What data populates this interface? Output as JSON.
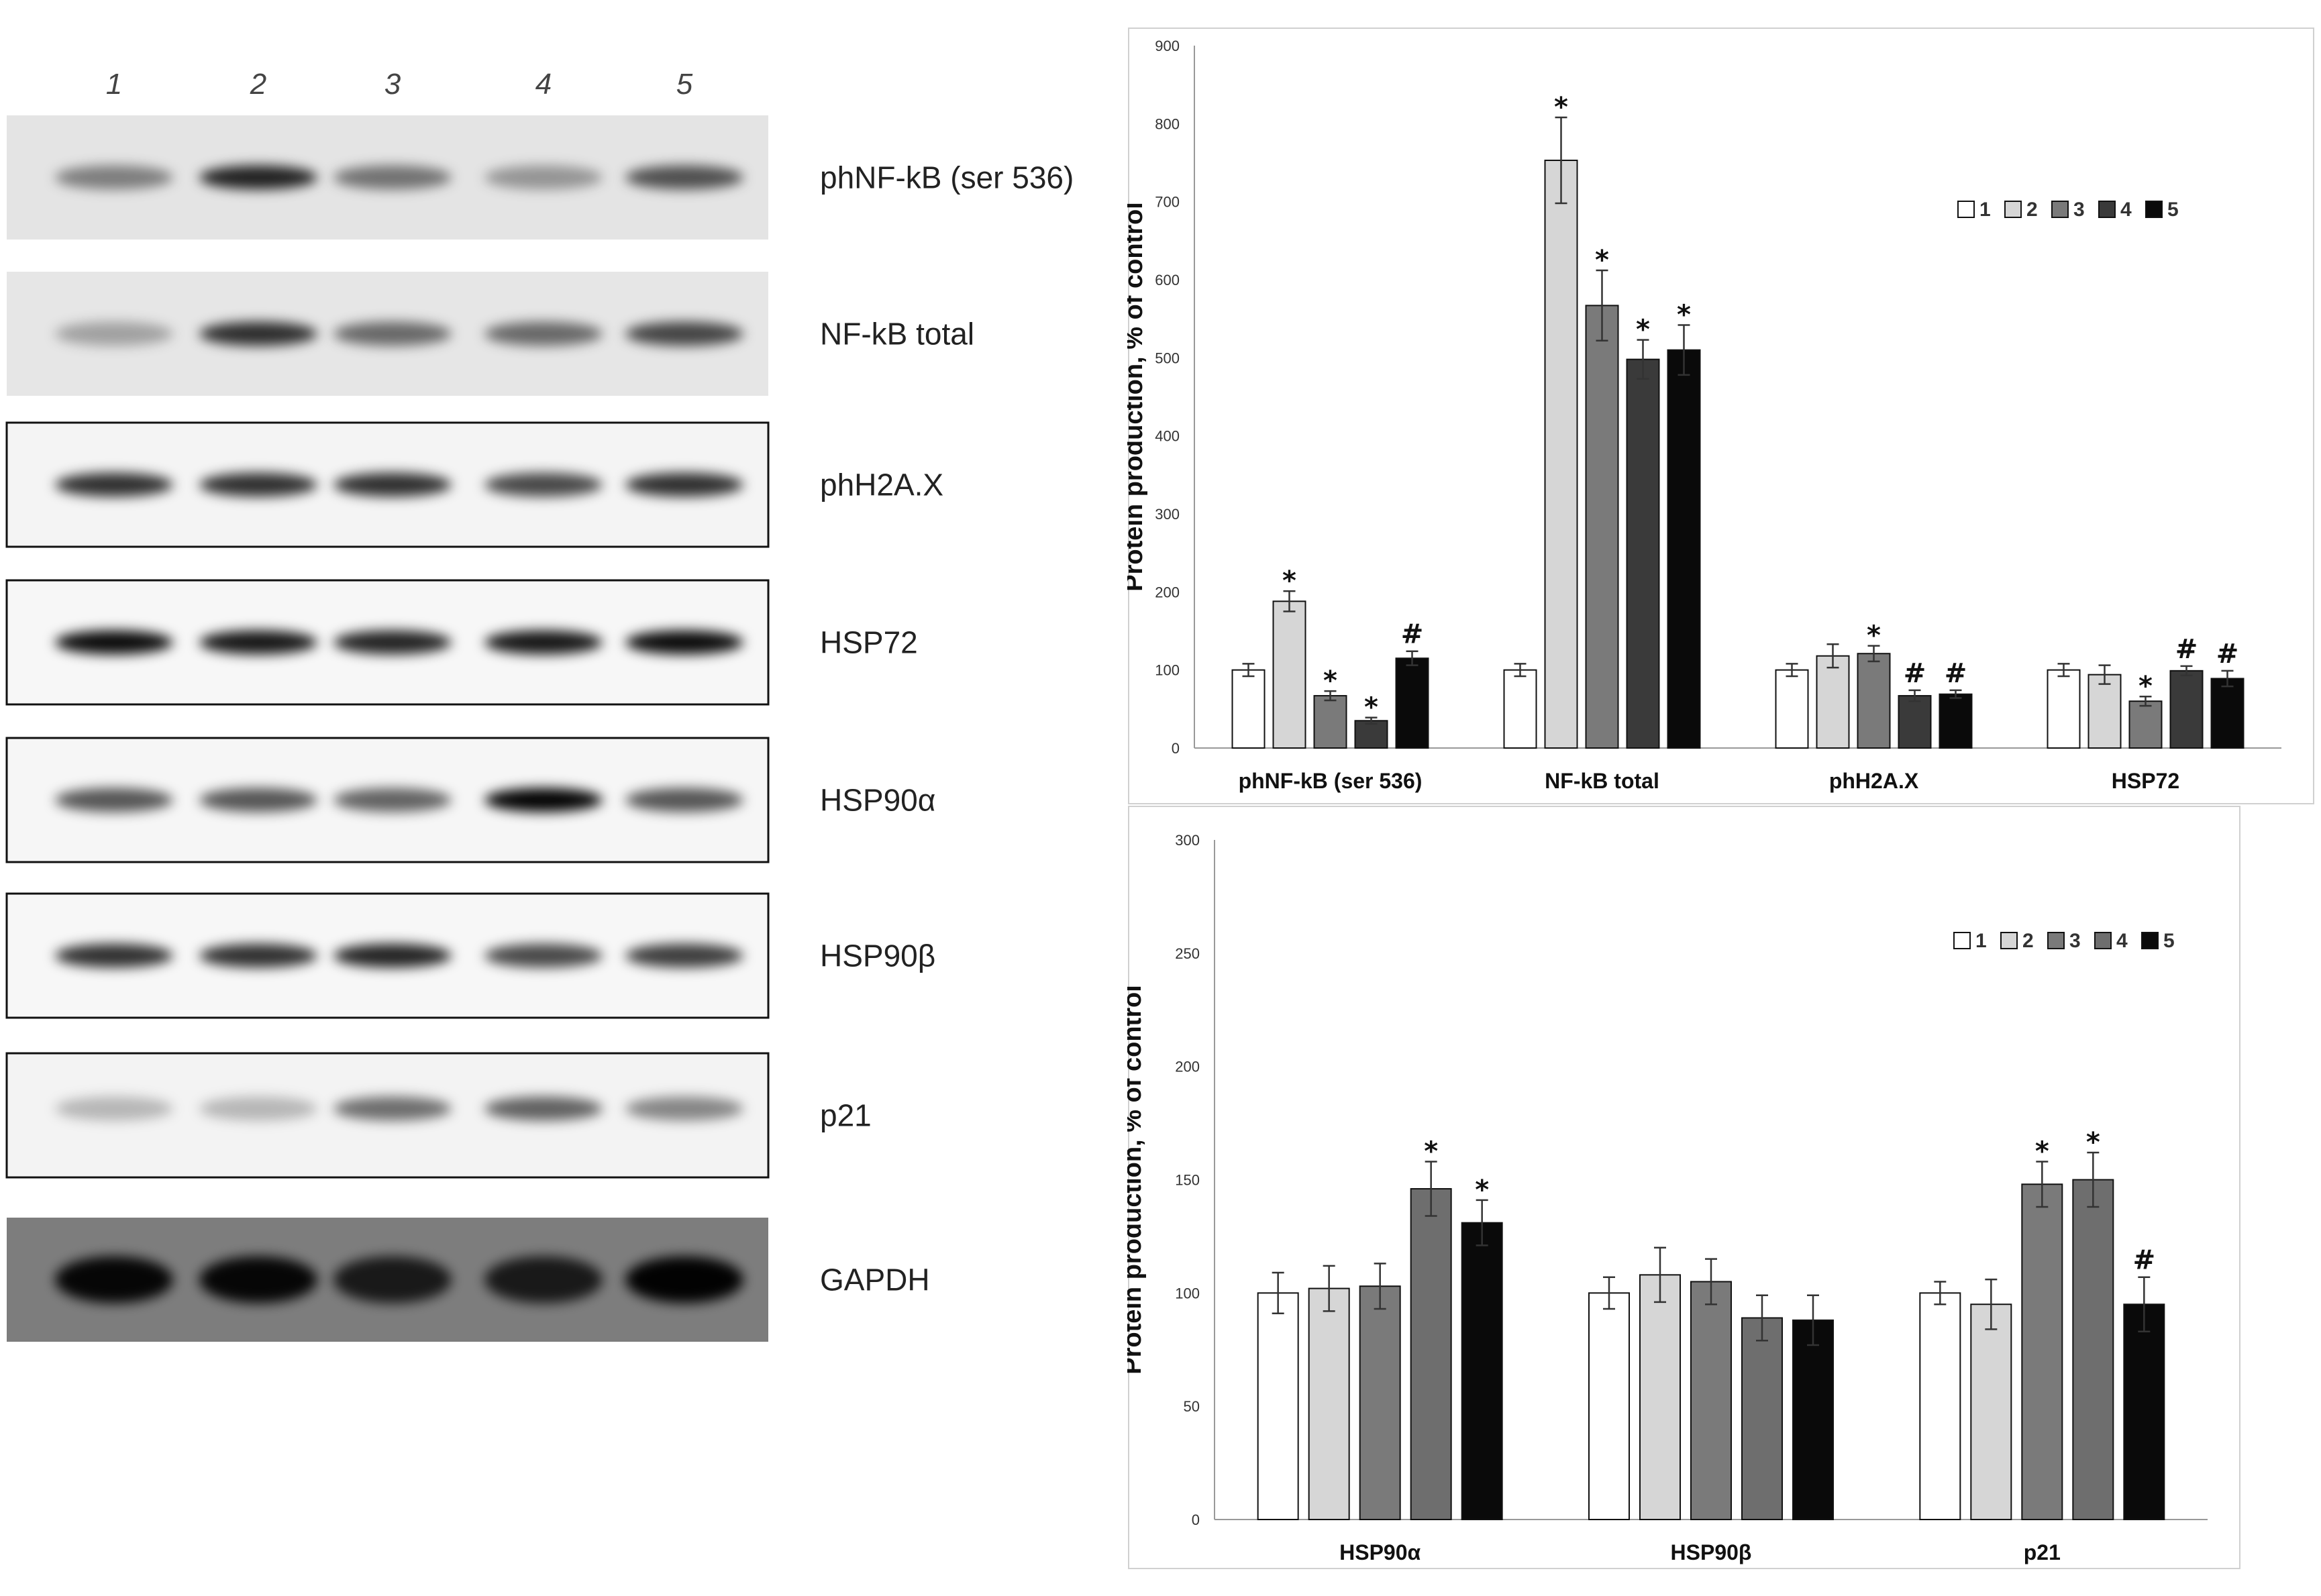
{
  "blot": {
    "lanes": [
      "1",
      "2",
      "3",
      "4",
      "5"
    ],
    "rows": [
      {
        "label": "phNF-kB (ser 536)"
      },
      {
        "label": "NF-kB total"
      },
      {
        "label": "phH2A.X"
      },
      {
        "label": "HSP72"
      },
      {
        "label": "HSP90α"
      },
      {
        "label": "HSP90β"
      },
      {
        "label": "p21"
      },
      {
        "label": "GAPDH"
      }
    ]
  },
  "chart_data": [
    {
      "type": "bar",
      "title": "",
      "xlabel": "",
      "ylabel": "Protein production, % of control",
      "ylim": [
        0,
        900
      ],
      "yticks": [
        0,
        100,
        200,
        300,
        400,
        500,
        600,
        700,
        800,
        900
      ],
      "categories": [
        "phNF-kB (ser 536)",
        "NF-kB total",
        "phH2A.X",
        "HSP72"
      ],
      "legend_position": "top-right",
      "grid": false,
      "series": [
        {
          "name": "1",
          "color": "#ffffff",
          "values": [
            100,
            100,
            100,
            100
          ],
          "errors": [
            8,
            8,
            8,
            8
          ],
          "marks": [
            "",
            "",
            "",
            ""
          ]
        },
        {
          "name": "2",
          "color": "#d6d6d6",
          "values": [
            188,
            753,
            118,
            94
          ],
          "errors": [
            13,
            55,
            15,
            12
          ],
          "marks": [
            "*",
            "*",
            "",
            ""
          ]
        },
        {
          "name": "3",
          "color": "#7a7a7a",
          "values": [
            67,
            567,
            121,
            60
          ],
          "errors": [
            6,
            45,
            10,
            6
          ],
          "marks": [
            "*",
            "*",
            "*",
            "*"
          ]
        },
        {
          "name": "4",
          "color": "#3a3a3a",
          "values": [
            35,
            498,
            67,
            99
          ],
          "errors": [
            4,
            25,
            7,
            6
          ],
          "marks": [
            "*",
            "*",
            "#",
            "#"
          ]
        },
        {
          "name": "5",
          "color": "#0a0a0a",
          "values": [
            115,
            510,
            69,
            89
          ],
          "errors": [
            9,
            32,
            5,
            10
          ],
          "marks": [
            "#",
            "*",
            "#",
            "#"
          ]
        }
      ]
    },
    {
      "type": "bar",
      "title": "",
      "xlabel": "",
      "ylabel": "Protein production, % of control",
      "ylim": [
        0,
        300
      ],
      "yticks": [
        0,
        50,
        100,
        150,
        200,
        250,
        300
      ],
      "categories": [
        "HSP90α",
        "HSP90β",
        "p21"
      ],
      "legend_position": "top-right",
      "grid": false,
      "series": [
        {
          "name": "1",
          "color": "#ffffff",
          "values": [
            100,
            100,
            100
          ],
          "errors": [
            9,
            7,
            5
          ],
          "marks": [
            "",
            "",
            ""
          ]
        },
        {
          "name": "2",
          "color": "#d6d6d6",
          "values": [
            102,
            108,
            95
          ],
          "errors": [
            10,
            12,
            11
          ],
          "marks": [
            "",
            "",
            ""
          ]
        },
        {
          "name": "3",
          "color": "#7a7a7a",
          "values": [
            103,
            105,
            148
          ],
          "errors": [
            10,
            10,
            10
          ],
          "marks": [
            "",
            "",
            "*"
          ]
        },
        {
          "name": "4",
          "color": "#6e6e6e",
          "values": [
            146,
            89,
            150
          ],
          "errors": [
            12,
            10,
            12
          ],
          "marks": [
            "*",
            "",
            "*"
          ]
        },
        {
          "name": "5",
          "color": "#0a0a0a",
          "values": [
            131,
            88,
            95
          ],
          "errors": [
            10,
            11,
            12
          ],
          "marks": [
            "*",
            "",
            "#"
          ]
        }
      ]
    }
  ]
}
